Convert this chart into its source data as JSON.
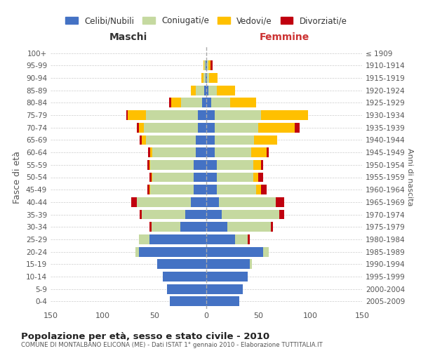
{
  "age_groups": [
    "0-4",
    "5-9",
    "10-14",
    "15-19",
    "20-24",
    "25-29",
    "30-34",
    "35-39",
    "40-44",
    "45-49",
    "50-54",
    "55-59",
    "60-64",
    "65-69",
    "70-74",
    "75-79",
    "80-84",
    "85-89",
    "90-94",
    "95-99",
    "100+"
  ],
  "birth_years": [
    "2005-2009",
    "2000-2004",
    "1995-1999",
    "1990-1994",
    "1985-1989",
    "1980-1984",
    "1975-1979",
    "1970-1974",
    "1965-1969",
    "1960-1964",
    "1955-1959",
    "1950-1954",
    "1945-1949",
    "1940-1944",
    "1935-1939",
    "1930-1934",
    "1925-1929",
    "1920-1924",
    "1915-1919",
    "1910-1914",
    "≤ 1909"
  ],
  "male": {
    "celibi": [
      35,
      38,
      42,
      47,
      65,
      55,
      25,
      20,
      15,
      12,
      12,
      12,
      10,
      10,
      8,
      8,
      4,
      2,
      1,
      1,
      0
    ],
    "coniugati": [
      0,
      0,
      0,
      0,
      3,
      10,
      28,
      42,
      52,
      42,
      40,
      42,
      42,
      48,
      52,
      50,
      20,
      8,
      2,
      1,
      0
    ],
    "vedovi": [
      0,
      0,
      0,
      0,
      0,
      0,
      0,
      0,
      0,
      1,
      1,
      1,
      2,
      4,
      5,
      18,
      10,
      5,
      2,
      1,
      0
    ],
    "divorziati": [
      0,
      0,
      0,
      0,
      0,
      0,
      2,
      2,
      5,
      2,
      2,
      2,
      2,
      2,
      2,
      1,
      2,
      0,
      0,
      0,
      0
    ]
  },
  "female": {
    "nubili": [
      32,
      35,
      40,
      42,
      55,
      28,
      20,
      15,
      12,
      10,
      10,
      10,
      8,
      8,
      8,
      8,
      5,
      2,
      1,
      1,
      0
    ],
    "coniugate": [
      0,
      0,
      0,
      2,
      5,
      12,
      42,
      55,
      55,
      38,
      35,
      35,
      35,
      38,
      42,
      45,
      18,
      8,
      2,
      1,
      0
    ],
    "vedove": [
      0,
      0,
      0,
      0,
      0,
      0,
      0,
      0,
      0,
      5,
      5,
      8,
      15,
      22,
      35,
      45,
      25,
      18,
      8,
      2,
      0
    ],
    "divorziate": [
      0,
      0,
      0,
      0,
      0,
      2,
      2,
      5,
      8,
      5,
      5,
      2,
      2,
      0,
      5,
      0,
      0,
      0,
      0,
      2,
      0
    ]
  },
  "colors": {
    "celibi": "#4472c4",
    "coniugati": "#c5d9a0",
    "vedovi": "#ffc000",
    "divorziati": "#c0000f"
  },
  "xlim": 150,
  "title": "Popolazione per età, sesso e stato civile - 2010",
  "subtitle": "COMUNE DI MONTALBANO ELICONA (ME) - Dati ISTAT 1° gennaio 2010 - Elaborazione TUTTITALIA.IT",
  "ylabel": "Fasce di età",
  "ylabel_right": "Anni di nascita",
  "legend_labels": [
    "Celibi/Nubili",
    "Coniugati/e",
    "Vedovi/e",
    "Divorziati/e"
  ],
  "bg_color": "#ffffff",
  "grid_color": "#cccccc",
  "maschi_color": "#333333",
  "femmine_color": "#cc3333"
}
